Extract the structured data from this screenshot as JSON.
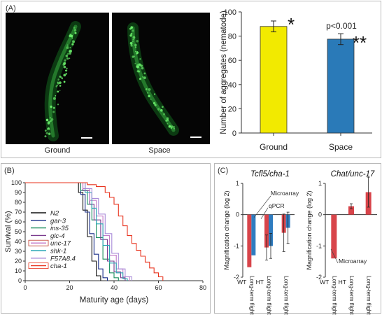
{
  "panelA": {
    "label": "(A)",
    "images": [
      {
        "caption": "Ground"
      },
      {
        "caption": "Space"
      }
    ]
  },
  "panelB": {
    "label": "(B)"
  },
  "panelC": {
    "label": "(C)"
  },
  "colors": {
    "ground_bar": "#f2ea00",
    "space_bar": "#2a7ab8",
    "microarray_bar": "#d8444a",
    "qpcr_bar": "#2e7cc0",
    "cha1_line": "#e8331e",
    "worm_green": "#6cf06c"
  },
  "chart_data": [
    {
      "type": "bar",
      "categories": [
        "Ground",
        "Space"
      ],
      "values": [
        88,
        77.5
      ],
      "errors": [
        4.5,
        4.5
      ],
      "ylabel": "Number of aggregates (nematode)",
      "ylim": [
        0,
        100
      ],
      "yticks": [
        "0",
        "20",
        "40",
        "60",
        "80",
        "100"
      ],
      "annotations": [
        "*",
        "p<0.001",
        "**"
      ]
    },
    {
      "type": "line",
      "xlabel": "Maturity age (days)",
      "ylabel": "Survival (%)",
      "xlim": [
        0,
        80
      ],
      "ylim": [
        0,
        100
      ],
      "xticks": [
        "0",
        "20",
        "40",
        "60",
        "80"
      ],
      "yticks": [
        "0",
        "10",
        "20",
        "30",
        "40",
        "50",
        "60",
        "70",
        "80",
        "90",
        "100"
      ],
      "legend_position": "bottom-left",
      "series": [
        {
          "name": "N2",
          "color": "#111111",
          "x": [
            0,
            22,
            24,
            26,
            28,
            30,
            32,
            34
          ],
          "y": [
            100,
            100,
            90,
            72,
            45,
            20,
            5,
            0
          ]
        },
        {
          "name": "gar-3",
          "color": "#1a2f8a",
          "x": [
            0,
            22,
            25,
            27,
            29,
            31,
            33,
            35,
            37
          ],
          "y": [
            100,
            100,
            88,
            70,
            48,
            27,
            12,
            3,
            0
          ]
        },
        {
          "name": "ins-35",
          "color": "#1b8e5e",
          "x": [
            0,
            22,
            25,
            28,
            30,
            32,
            35,
            38,
            40,
            42
          ],
          "y": [
            100,
            100,
            92,
            78,
            62,
            44,
            22,
            8,
            3,
            0
          ]
        },
        {
          "name": "glc-4",
          "color": "#7a3a8e",
          "x": [
            0,
            23,
            26,
            29,
            31,
            34,
            37,
            40,
            43,
            45
          ],
          "y": [
            100,
            100,
            92,
            78,
            62,
            42,
            20,
            9,
            3,
            0
          ]
        },
        {
          "name": "unc-17",
          "color": "#c37ac8",
          "x": [
            0,
            23,
            26,
            29,
            32,
            35,
            38,
            41,
            44,
            47
          ],
          "y": [
            100,
            100,
            94,
            82,
            66,
            46,
            26,
            12,
            4,
            0
          ]
        },
        {
          "name": "shk-1",
          "color": "#2aa7b5",
          "x": [
            0,
            24,
            27,
            30,
            32,
            35,
            38,
            41,
            44,
            46
          ],
          "y": [
            100,
            100,
            90,
            74,
            58,
            36,
            18,
            8,
            2,
            0
          ]
        },
        {
          "name": "F57A8.4",
          "color": "#a98ad8",
          "x": [
            0,
            24,
            27,
            30,
            33,
            36,
            39,
            42,
            45,
            48
          ],
          "y": [
            100,
            100,
            94,
            84,
            68,
            48,
            28,
            12,
            4,
            0
          ]
        },
        {
          "name": "cha-1",
          "color": "#e8331e",
          "x": [
            0,
            26,
            28,
            32,
            36,
            38,
            40,
            42,
            44,
            46,
            48,
            50,
            52,
            54,
            56,
            58,
            60,
            62
          ],
          "y": [
            100,
            100,
            98,
            96,
            90,
            85,
            78,
            66,
            56,
            46,
            38,
            31,
            25,
            19,
            13,
            8,
            4,
            0
          ]
        }
      ]
    },
    {
      "type": "bar",
      "title": "Tcfl5/cha-1",
      "ylabel": "Magnification change (log 2)",
      "ylim": [
        -2,
        1
      ],
      "yticks": [
        "-2",
        "-1",
        "0",
        "1"
      ],
      "categories": [
        "WT",
        "HT",
        "Long-term flight"
      ],
      "x_sublabels": [
        "Long-term flight",
        "Long-term flight"
      ],
      "series": [
        {
          "name": "Microarray",
          "values": [
            -1.68,
            -1.05,
            -0.58
          ],
          "errors": [
            0.0,
            0.4,
            0.6
          ]
        },
        {
          "name": "qPCR",
          "values": [
            -1.3,
            -1.0,
            -0.42
          ],
          "errors": [
            0.0,
            0.4,
            0.5
          ]
        }
      ]
    },
    {
      "type": "bar",
      "title": "Chat/unc-17",
      "ylabel": "Magnification change (log 2)",
      "ylim": [
        -2,
        1
      ],
      "yticks": [
        "-2",
        "-1",
        "0",
        "1"
      ],
      "categories": [
        "WT",
        "HT",
        "Long-term flight"
      ],
      "x_sublabels": [
        "Long-term flight",
        "Long-term flight"
      ],
      "series": [
        {
          "name": "Microarray",
          "values": [
            -1.4,
            0.27,
            0.72
          ],
          "errors": [
            0.0,
            0.08,
            0.48
          ]
        }
      ]
    }
  ]
}
